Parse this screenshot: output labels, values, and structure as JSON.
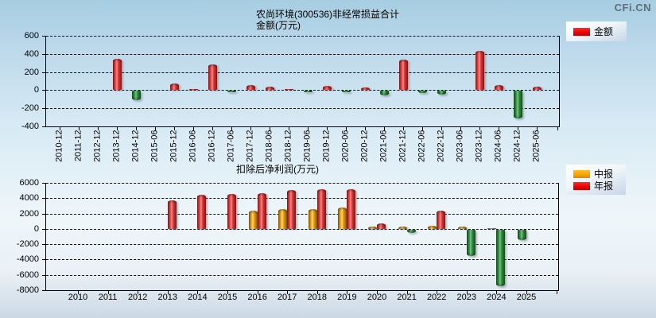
{
  "watermark": "CFi.CN",
  "chart_data": [
    {
      "type": "bar",
      "title": "农尚环境(300536)非经常损益合计",
      "subtitle": "金额(万元)",
      "xlabel": "",
      "ylabel": "金额(万元)",
      "ylim": [
        -400,
        600
      ],
      "yticks": [
        600,
        400,
        200,
        0,
        -200,
        -400
      ],
      "grid": "horizontal-dashed",
      "legend_position": "top-right",
      "categories": [
        "2010-12",
        "2011-12",
        "2012-12",
        "2013-12",
        "2014-12",
        "2015-06",
        "2015-12",
        "2016-06",
        "2016-12",
        "2017-06",
        "2017-12",
        "2018-06",
        "2018-12",
        "2019-06",
        "2019-12",
        "2020-06",
        "2020-12",
        "2021-06",
        "2021-12",
        "2022-06",
        "2022-12",
        "2023-06",
        "2023-12",
        "2024-06",
        "2024-12",
        "2025-06"
      ],
      "series": [
        {
          "name": "金额",
          "color": "#ee1c1c",
          "negative_color": "#2e8b3c",
          "values": [
            null,
            null,
            null,
            350,
            -100,
            null,
            70,
            15,
            280,
            -10,
            60,
            40,
            15,
            -10,
            50,
            -10,
            30,
            -50,
            340,
            -25,
            -40,
            null,
            430,
            60,
            -300,
            40
          ]
        }
      ]
    },
    {
      "type": "bar",
      "title": "扣除后净利润(万元)",
      "xlabel": "",
      "ylabel": "扣除后净利润(万元)",
      "ylim": [
        -8000,
        6000
      ],
      "yticks": [
        6000,
        4000,
        2000,
        0,
        -2000,
        -4000,
        -6000,
        -8000
      ],
      "grid": "horizontal-dashed",
      "legend_position": "top-right",
      "categories": [
        "2010",
        "2011",
        "2012",
        "2013",
        "2014",
        "2015",
        "2016",
        "2017",
        "2018",
        "2019",
        "2020",
        "2021",
        "2022",
        "2023",
        "2024",
        "2025"
      ],
      "series": [
        {
          "name": "中报",
          "color": "#f5a700",
          "negative_color": "#2e8b3c",
          "values": [
            null,
            null,
            null,
            null,
            null,
            null,
            2400,
            2600,
            2600,
            2800,
            300,
            300,
            400,
            300,
            100,
            -1400
          ]
        },
        {
          "name": "年报",
          "color": "#ee1c1c",
          "negative_color": "#2e8b3c",
          "values": [
            null,
            null,
            null,
            3700,
            4400,
            4600,
            4700,
            5100,
            5200,
            5200,
            700,
            -400,
            2400,
            -3400,
            -7400,
            null
          ]
        }
      ]
    }
  ]
}
